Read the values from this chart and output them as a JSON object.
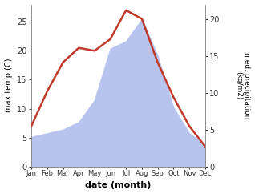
{
  "months": [
    "Jan",
    "Feb",
    "Mar",
    "Apr",
    "May",
    "Jun",
    "Jul",
    "Aug",
    "Sep",
    "Oct",
    "Nov",
    "Dec"
  ],
  "month_positions": [
    1,
    2,
    3,
    4,
    5,
    6,
    7,
    8,
    9,
    10,
    11,
    12
  ],
  "temperature": [
    7,
    13,
    18,
    20.5,
    20,
    22,
    27,
    25.5,
    18,
    12,
    7,
    3.5
  ],
  "precipitation": [
    4,
    4.5,
    5,
    6,
    9,
    16,
    17,
    20,
    15,
    8,
    4.5,
    3
  ],
  "temp_color": "#c0392b",
  "precip_fill_color": "#b8c4ee",
  "ylabel_left": "max temp (C)",
  "ylabel_right": "med. precipitation\n(kg/m2)",
  "xlabel": "date (month)",
  "ylim_left": [
    0,
    28
  ],
  "ylim_right": [
    0,
    22
  ],
  "yticks_left": [
    0,
    5,
    10,
    15,
    20,
    25
  ],
  "yticks_right": [
    0,
    5,
    10,
    15,
    20
  ],
  "background_color": "#ffffff"
}
